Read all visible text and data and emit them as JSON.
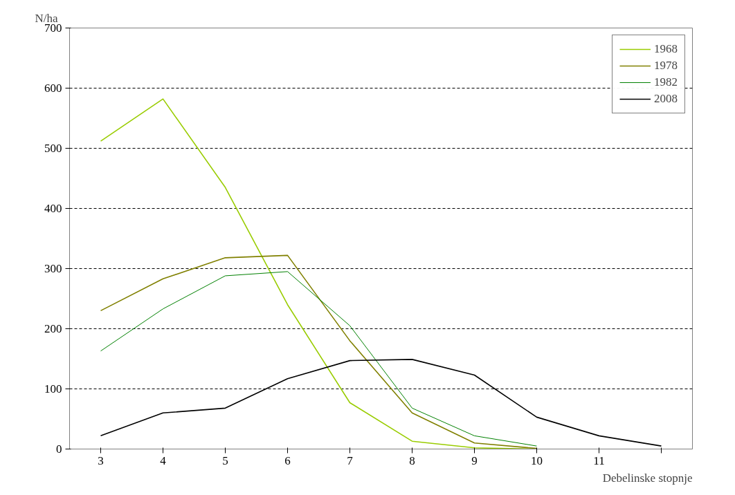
{
  "chart_data": {
    "type": "line",
    "xlabel": "Debelinske stopnje",
    "ylabel": "N/ha",
    "categories": [
      "3",
      "4",
      "5",
      "6",
      "7",
      "8",
      "9",
      "10",
      "11",
      null
    ],
    "series": [
      {
        "name": "1968",
        "color": "#99cc00",
        "values": [
          512,
          582,
          435,
          240,
          77,
          13,
          2,
          0,
          null,
          null
        ]
      },
      {
        "name": "1978",
        "color": "#808000",
        "values": [
          230,
          283,
          318,
          322,
          180,
          60,
          10,
          1,
          null,
          null
        ]
      },
      {
        "name": "1982",
        "color": "#008000",
        "values": [
          163,
          233,
          288,
          295,
          205,
          68,
          22,
          5,
          null,
          null
        ]
      },
      {
        "name": "2008",
        "color": "#000000",
        "values": [
          22,
          60,
          68,
          117,
          147,
          149,
          123,
          53,
          22,
          5
        ]
      }
    ],
    "ylim": [
      0,
      700
    ],
    "yticks": [
      0,
      100,
      200,
      300,
      400,
      500,
      600,
      700
    ],
    "grid": "y",
    "legend": "top right",
    "marker": "none",
    "line_style": "solid"
  }
}
